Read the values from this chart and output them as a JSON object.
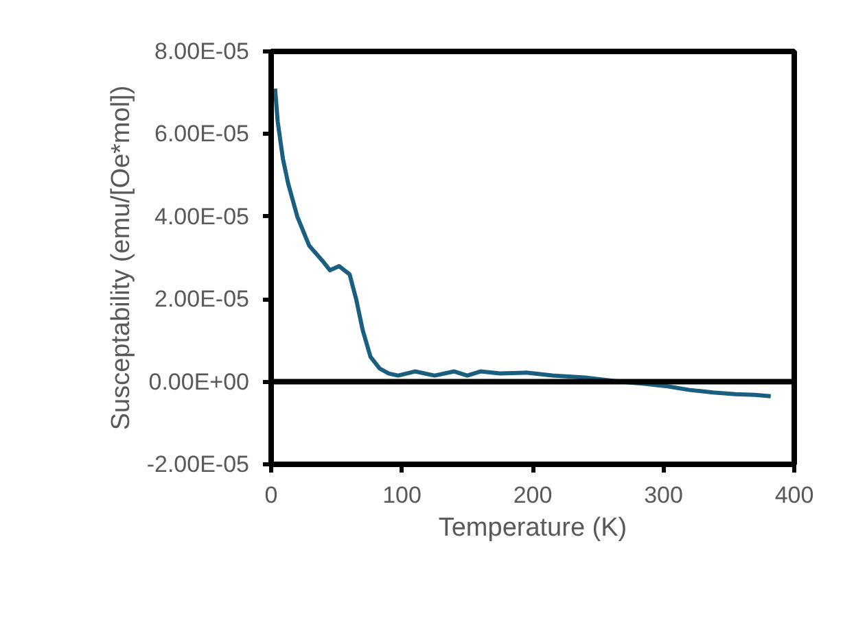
{
  "chart_data": {
    "type": "line",
    "xlabel": "Temperature (K)",
    "ylabel": "Susceptability (emu/[Oe*mol])",
    "xlim": [
      0,
      400
    ],
    "xticks": [
      0,
      100,
      200,
      300,
      400
    ],
    "ylim": [
      -2e-05,
      8e-05
    ],
    "yticks": [
      {
        "value": -2e-05,
        "label": "-2.00E-05"
      },
      {
        "value": 0,
        "label": "0.00E+00"
      },
      {
        "value": 2e-05,
        "label": "2.00E-05"
      },
      {
        "value": 4e-05,
        "label": "4.00E-05"
      },
      {
        "value": 6e-05,
        "label": "6.00E-05"
      },
      {
        "value": 8e-05,
        "label": "8.00E-05"
      }
    ],
    "grid": false,
    "marker": "none",
    "line_style": "solid",
    "ref_lines": [
      {
        "axis": "y",
        "value": 0,
        "color": "#000000"
      }
    ],
    "series": [
      {
        "color": "#1a5f80",
        "x": [
          3,
          5,
          9,
          13,
          20,
          29,
          40,
          45,
          52,
          60,
          65,
          70,
          76,
          83,
          90,
          97,
          110,
          125,
          140,
          150,
          160,
          175,
          195,
          215,
          240,
          267,
          285,
          303,
          320,
          338,
          355,
          370,
          382
        ],
        "values": [
          7.1e-05,
          6.3e-05,
          5.4e-05,
          4.8e-05,
          4e-05,
          3.3e-05,
          2.9e-05,
          2.7e-05,
          2.8e-05,
          2.6e-05,
          2e-05,
          1.25e-05,
          6e-06,
          3.2e-06,
          2e-06,
          1.5e-06,
          2.5e-06,
          1.5e-06,
          2.5e-06,
          1.5e-06,
          2.5e-06,
          2e-06,
          2.2e-06,
          1.5e-06,
          1e-06,
          0,
          -5e-07,
          -1.1e-06,
          -2e-06,
          -2.6e-06,
          -3e-06,
          -3.2e-06,
          -3.5e-06
        ]
      }
    ]
  }
}
